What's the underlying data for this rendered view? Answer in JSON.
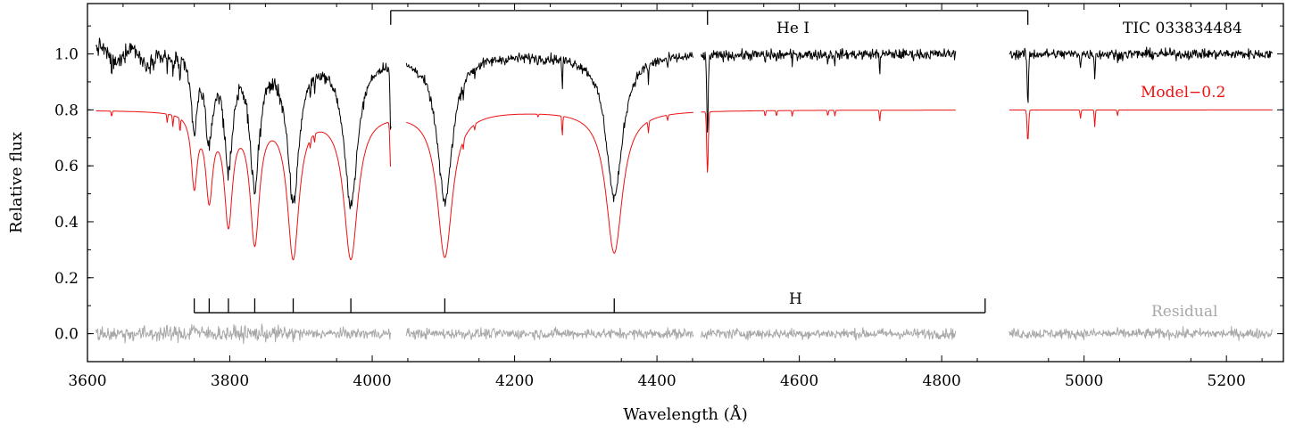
{
  "chart_data": {
    "type": "line",
    "xlabel": "Wavelength (Å)",
    "ylabel": "Relative flux",
    "xlim": [
      3600,
      5280
    ],
    "ylim": [
      -0.1,
      1.18
    ],
    "x_ticks": [
      3600,
      3800,
      4000,
      4200,
      4400,
      4600,
      4800,
      5000,
      5200
    ],
    "y_ticks": [
      0.0,
      0.2,
      0.4,
      0.6,
      0.8,
      1.0
    ],
    "x_tick_labels": [
      "3600",
      "3800",
      "4000",
      "4200",
      "4400",
      "4600",
      "4800",
      "5000",
      "5200"
    ],
    "y_tick_labels": [
      "0.0",
      "0.2",
      "0.4",
      "0.6",
      "0.8",
      "1.0"
    ],
    "grid": false,
    "segments": [
      [
        3612,
        4027
      ],
      [
        4048,
        4452
      ],
      [
        4462,
        4820
      ],
      [
        4895,
        5265
      ]
    ],
    "series": [
      {
        "name": "TIC 033834484",
        "color": "#000000",
        "offset": 1.0,
        "noise": 0.018
      },
      {
        "name": "Model−0.2",
        "color": "#ee1111",
        "offset": 0.8,
        "noise": 0.0
      },
      {
        "name": "Residual",
        "color": "#a8a8a8",
        "offset": 0.0,
        "noise": 0.018
      }
    ],
    "h_lines": [
      {
        "center": 3750,
        "depth_model": 0.25,
        "width": 5
      },
      {
        "center": 3771,
        "depth_model": 0.29,
        "width": 6
      },
      {
        "center": 3798,
        "depth_model": 0.38,
        "width": 7
      },
      {
        "center": 3835,
        "depth_model": 0.45,
        "width": 8
      },
      {
        "center": 3889,
        "depth_model": 0.51,
        "width": 10
      },
      {
        "center": 3970,
        "depth_model": 0.52,
        "width": 12
      },
      {
        "center": 4102,
        "depth_model": 0.52,
        "width": 13
      },
      {
        "center": 4340,
        "depth_model": 0.51,
        "width": 14
      }
    ],
    "he_lines": [
      {
        "center": 4026,
        "depth_model": 0.17,
        "width": 1.5
      },
      {
        "center": 4471,
        "depth_model": 0.22,
        "width": 1.5
      },
      {
        "center": 4921,
        "depth_model": 0.11,
        "width": 1.5
      }
    ],
    "metal_lines": [
      {
        "center": 3634,
        "depth": 0.02
      },
      {
        "center": 3712,
        "depth": 0.03
      },
      {
        "center": 3720,
        "depth": 0.04
      },
      {
        "center": 3730,
        "depth": 0.05
      },
      {
        "center": 3913,
        "depth": 0.03
      },
      {
        "center": 3919,
        "depth": 0.03
      },
      {
        "center": 4128,
        "depth": 0.03
      },
      {
        "center": 4144,
        "depth": 0.02
      },
      {
        "center": 4233,
        "depth": 0.01
      },
      {
        "center": 4267,
        "depth": 0.07
      },
      {
        "center": 4388,
        "depth": 0.04
      },
      {
        "center": 4415,
        "depth": 0.02
      },
      {
        "center": 4552,
        "depth": 0.02
      },
      {
        "center": 4568,
        "depth": 0.02
      },
      {
        "center": 4590,
        "depth": 0.02
      },
      {
        "center": 4640,
        "depth": 0.02
      },
      {
        "center": 4650,
        "depth": 0.02
      },
      {
        "center": 4713,
        "depth": 0.04
      },
      {
        "center": 4995,
        "depth": 0.03
      },
      {
        "center": 5015,
        "depth": 0.06
      },
      {
        "center": 5047,
        "depth": 0.02
      }
    ],
    "annotations": {
      "object_label": "TIC 033834484",
      "model_label": "Model−0.2",
      "residual_label": "Residual",
      "he_label": "He I",
      "h_label": "H"
    },
    "he_marker": {
      "x_start": 4026,
      "x_end": 4921,
      "ticks": [
        4026,
        4471,
        4921
      ],
      "y": 1.155
    },
    "h_marker": {
      "x_start": 3750,
      "x_end": 4861,
      "ticks": [
        3750,
        3771,
        3798,
        3835,
        3889,
        3970,
        4102,
        4340,
        4861
      ],
      "y": 0.075
    },
    "colors": {
      "object": "#000000",
      "model": "#ee1111",
      "residual": "#a8a8a8"
    }
  }
}
